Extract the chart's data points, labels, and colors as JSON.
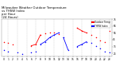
{
  "title": "Milwaukee Weather Outdoor Temperature\nvs THSW Index\nper Hour\n(24 Hours)",
  "title_fontsize": 2.8,
  "background_color": "#ffffff",
  "legend_labels": [
    "Outdoor Temp",
    "THSW Index"
  ],
  "legend_colors": [
    "#ff0000",
    "#0000ff"
  ],
  "temp_dots": [
    [
      0,
      42
    ],
    [
      1,
      40
    ],
    [
      2,
      38
    ],
    [
      6,
      36
    ],
    [
      7,
      38
    ],
    [
      8,
      52
    ],
    [
      9,
      54
    ],
    [
      10,
      56
    ],
    [
      11,
      55
    ],
    [
      12,
      53
    ],
    [
      16,
      62
    ],
    [
      17,
      58
    ],
    [
      18,
      55
    ],
    [
      19,
      52
    ],
    [
      20,
      48
    ],
    [
      21,
      44
    ],
    [
      22,
      42
    ],
    [
      23,
      58
    ]
  ],
  "thsw_dots": [
    [
      0,
      30
    ],
    [
      1,
      28
    ],
    [
      3,
      26
    ],
    [
      4,
      24
    ],
    [
      6,
      26
    ],
    [
      7,
      28
    ],
    [
      8,
      38
    ],
    [
      9,
      42
    ],
    [
      10,
      48
    ],
    [
      11,
      52
    ],
    [
      12,
      55
    ],
    [
      13,
      48
    ],
    [
      14,
      30
    ],
    [
      16,
      35
    ],
    [
      17,
      38
    ],
    [
      18,
      42
    ],
    [
      19,
      40
    ],
    [
      20,
      36
    ],
    [
      21,
      32
    ],
    [
      22,
      28
    ],
    [
      23,
      26
    ]
  ],
  "red_line_segments": [
    [
      [
        6,
        36
      ],
      [
        7,
        38
      ],
      [
        8,
        52
      ]
    ],
    [
      [
        16,
        62
      ],
      [
        17,
        58
      ],
      [
        18,
        55
      ]
    ]
  ],
  "blue_line_segments": [
    [
      [
        8,
        38
      ],
      [
        9,
        42
      ],
      [
        10,
        48
      ],
      [
        11,
        52
      ],
      [
        12,
        55
      ]
    ],
    [
      [
        13,
        48
      ],
      [
        14,
        30
      ]
    ],
    [
      [
        16,
        35
      ],
      [
        17,
        38
      ],
      [
        18,
        42
      ]
    ]
  ],
  "ylim": [
    20,
    75
  ],
  "yticks": [
    25,
    35,
    45,
    55,
    65,
    75
  ],
  "ytick_labels": [
    "25",
    "35",
    "45",
    "55",
    "65",
    "75"
  ],
  "xlim": [
    -0.5,
    23.5
  ],
  "xticks": [
    0,
    1,
    2,
    3,
    4,
    5,
    6,
    7,
    8,
    9,
    10,
    11,
    12,
    13,
    14,
    15,
    16,
    17,
    18,
    19,
    20,
    21,
    22,
    23
  ],
  "grid_x": [
    1,
    3,
    5,
    7,
    9,
    11,
    13,
    15,
    17,
    19,
    21,
    23
  ],
  "tick_fontsize": 2.2,
  "dot_size": 1.2
}
